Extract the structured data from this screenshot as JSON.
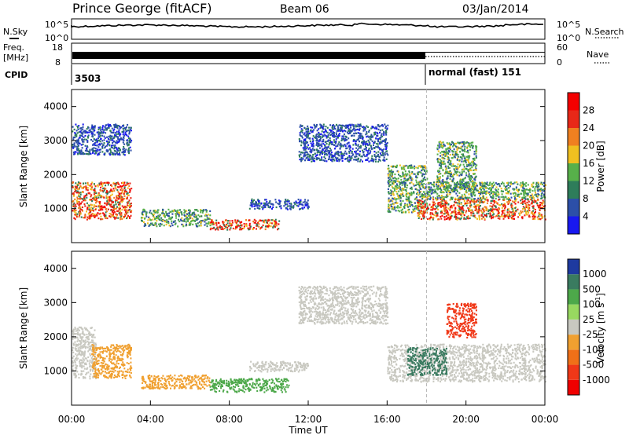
{
  "header": {
    "station": "Prince George (fitACF)",
    "beam": "Beam 06",
    "date": "03/Jan/2014"
  },
  "top_panels": {
    "nsky_label": "N.Sky",
    "nsky_ticks": [
      "10^5",
      "10^0"
    ],
    "nsearch_label": "N.Search",
    "nsearch_ticks": [
      "10^5",
      "10^0"
    ],
    "freq_label_1": "Freq.",
    "freq_label_2": "[MHz]",
    "freq_ticks": [
      "18",
      "8"
    ],
    "nave_label": "Nave",
    "nave_ticks": [
      "60",
      "0"
    ],
    "cpid_label": "CPID",
    "cpid_1": "3503",
    "cpid_2": "normal (fast) 151"
  },
  "x_axis": {
    "label": "Time UT",
    "ticks": [
      "00:00",
      "04:00",
      "08:00",
      "12:00",
      "16:00",
      "20:00",
      "00:00"
    ]
  },
  "y_axis": {
    "label": "Slant Range [km]",
    "ticks": [
      "1000",
      "2000",
      "3000",
      "4000"
    ]
  },
  "power_colorbar": {
    "label": "Power [dB]",
    "ticks": [
      "4",
      "8",
      "12",
      "16",
      "20",
      "24",
      "28"
    ],
    "colors": [
      "#1818f0",
      "#2c4fa8",
      "#2e7d5a",
      "#57b04a",
      "#f0c020",
      "#f08020",
      "#e82818",
      "#f40000"
    ]
  },
  "velocity_colorbar": {
    "label": "Velocity [m s",
    "label_sup": "-1",
    "label_end": "]",
    "ticks": [
      "1000",
      "500",
      "100",
      "25",
      "-25",
      "-100",
      "-500",
      "-1000"
    ],
    "colors": [
      "#1e3aa0",
      "#3a7b60",
      "#4da84a",
      "#98d860",
      "#c8c8c0",
      "#f0a030",
      "#f07018",
      "#f03818",
      "#f00000"
    ]
  },
  "chart_data": {
    "type": "heatmap",
    "x_range": [
      "00:00",
      "24:00"
    ],
    "ylim": [
      0,
      4500
    ],
    "mode_change_time": "18:00",
    "power_regions": [
      {
        "t0": 0.0,
        "t1": 3.0,
        "r0": 700,
        "r1": 1800,
        "level": "high"
      },
      {
        "t0": 0.0,
        "t1": 3.0,
        "r0": 2600,
        "r1": 3500,
        "level": "low"
      },
      {
        "t0": 3.5,
        "t1": 7.0,
        "r0": 500,
        "r1": 1000,
        "level": "mid"
      },
      {
        "t0": 7.0,
        "t1": 10.5,
        "r0": 400,
        "r1": 700,
        "level": "high"
      },
      {
        "t0": 9.0,
        "t1": 12.0,
        "r0": 1000,
        "r1": 1300,
        "level": "low"
      },
      {
        "t0": 11.5,
        "t1": 16.0,
        "r0": 2400,
        "r1": 3500,
        "level": "low"
      },
      {
        "t0": 16.0,
        "t1": 18.0,
        "r0": 900,
        "r1": 2300,
        "level": "mid"
      },
      {
        "t0": 17.5,
        "t1": 24.0,
        "r0": 700,
        "r1": 1300,
        "level": "high"
      },
      {
        "t0": 18.0,
        "t1": 24.0,
        "r0": 1300,
        "r1": 1800,
        "level": "mid"
      },
      {
        "t0": 18.5,
        "t1": 20.5,
        "r0": 1500,
        "r1": 3000,
        "level": "mid"
      }
    ],
    "velocity_regions": [
      {
        "t0": 0.0,
        "t1": 1.2,
        "r0": 800,
        "r1": 2300,
        "level": "-25"
      },
      {
        "t0": 1.0,
        "t1": 3.0,
        "r0": 800,
        "r1": 1800,
        "level": "-100"
      },
      {
        "t0": 3.5,
        "t1": 7.0,
        "r0": 500,
        "r1": 900,
        "level": "-100"
      },
      {
        "t0": 7.0,
        "t1": 11.0,
        "r0": 400,
        "r1": 800,
        "level": "100"
      },
      {
        "t0": 9.0,
        "t1": 12.0,
        "r0": 1000,
        "r1": 1300,
        "level": "-25"
      },
      {
        "t0": 11.5,
        "t1": 16.0,
        "r0": 2400,
        "r1": 3500,
        "level": "-25"
      },
      {
        "t0": 16.0,
        "t1": 24.0,
        "r0": 700,
        "r1": 1800,
        "level": "-25"
      },
      {
        "t0": 17.0,
        "t1": 19.0,
        "r0": 900,
        "r1": 1700,
        "level": "500"
      },
      {
        "t0": 19.0,
        "t1": 20.5,
        "r0": 2000,
        "r1": 3000,
        "level": "-1000"
      }
    ]
  }
}
